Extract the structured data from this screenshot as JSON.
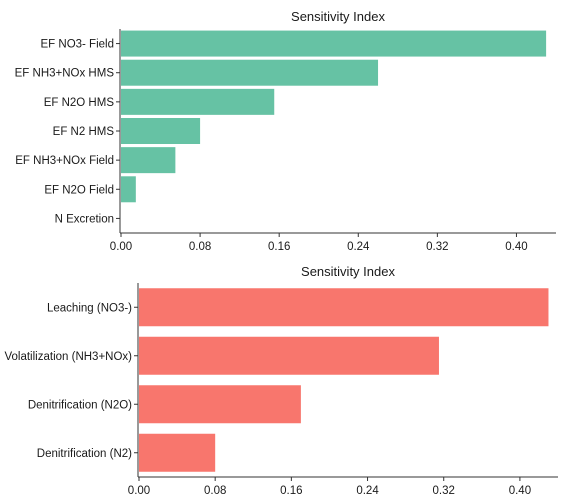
{
  "chart_data": [
    {
      "type": "bar",
      "orientation": "horizontal",
      "title": "Sensitivity Index",
      "xlabel": "",
      "ylabel": "",
      "categories": [
        "EF NO3- Field",
        "EF NH3+NOx HMS",
        "EF N2O HMS",
        "EF N2 HMS",
        "EF NH3+NOx Field",
        "EF N2O Field",
        "N Excretion"
      ],
      "values": [
        0.43,
        0.26,
        0.155,
        0.08,
        0.055,
        0.015,
        0.0
      ],
      "xlim": [
        0,
        0.44
      ],
      "xticks": [
        "0.00",
        "0.08",
        "0.16",
        "0.24",
        "0.32",
        "0.40"
      ],
      "color": "#66c2a4",
      "grid": false
    },
    {
      "type": "bar",
      "orientation": "horizontal",
      "title": "Sensitivity Index",
      "xlabel": "",
      "ylabel": "",
      "categories": [
        "Leaching (NO3-)",
        "Volatilization (NH3+NOx)",
        "Denitrification (N2O)",
        "Denitrification (N2)"
      ],
      "values": [
        0.43,
        0.315,
        0.17,
        0.08
      ],
      "xlim": [
        0,
        0.44
      ],
      "xticks": [
        "0.00",
        "0.08",
        "0.16",
        "0.24",
        "0.32",
        "0.40"
      ],
      "color": "#f8766d",
      "grid": false
    }
  ]
}
